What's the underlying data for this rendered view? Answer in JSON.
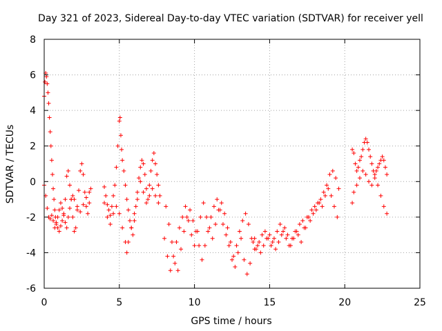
{
  "chart_data": {
    "type": "scatter",
    "title": "Day 321 of 2023, Sidereal Day-to-day VTEC variation (SDTVAR) for receiver yell",
    "xlabel": "GPS time / hours",
    "ylabel": "SDTVAR / TECUs",
    "xlim": [
      0,
      25
    ],
    "ylim": [
      -6,
      8
    ],
    "xticks": [
      0,
      5,
      10,
      15,
      20,
      25
    ],
    "xtick_labels": [
      "0",
      "5",
      "10",
      "15",
      "20",
      "25"
    ],
    "yticks": [
      -6,
      -4,
      -2,
      0,
      2,
      4,
      6,
      8
    ],
    "ytick_labels": [
      "-6",
      "-4",
      "-2",
      "0",
      "2",
      "4",
      "6",
      "8"
    ],
    "grid": true,
    "legend": "none",
    "marker": "+",
    "color": "#ff0000",
    "series": [
      {
        "name": "SDTVAR",
        "x": [
          0.0,
          0.05,
          0.1,
          0.15,
          0.2,
          0.25,
          0.3,
          0.35,
          0.4,
          0.45,
          0.5,
          0.55,
          0.6,
          0.65,
          0.7,
          0.75,
          0.8,
          0.9,
          1.0,
          1.1,
          1.2,
          1.3,
          1.4,
          1.5,
          1.6,
          1.7,
          1.8,
          1.9,
          2.0,
          2.1,
          2.2,
          2.3,
          2.4,
          2.5,
          2.6,
          2.7,
          2.8,
          2.9,
          3.0,
          3.1,
          0.0,
          0.1,
          0.2,
          0.3,
          0.4,
          0.5,
          0.6,
          0.7,
          0.8,
          0.9,
          1.0,
          1.1,
          1.2,
          1.3,
          1.4,
          1.5,
          1.6,
          1.7,
          1.8,
          1.9,
          2.0,
          2.2,
          2.4,
          2.6,
          2.8,
          3.0,
          4.0,
          4.1,
          4.2,
          4.3,
          4.4,
          4.5,
          4.6,
          4.7,
          4.8,
          4.9,
          5.0,
          5.05,
          5.1,
          5.15,
          5.2,
          5.3,
          5.4,
          5.5,
          5.6,
          5.7,
          5.8,
          5.9,
          6.0,
          6.1,
          6.2,
          6.3,
          6.4,
          6.5,
          6.6,
          6.7,
          6.8,
          6.9,
          7.0,
          7.1,
          7.2,
          7.3,
          7.4,
          7.5,
          7.6,
          7.7,
          4.0,
          4.2,
          4.4,
          4.6,
          4.8,
          5.0,
          5.2,
          5.4,
          5.5,
          5.6,
          5.8,
          6.0,
          6.2,
          6.4,
          6.6,
          6.8,
          7.0,
          7.2,
          7.4,
          7.6,
          8.0,
          8.2,
          8.4,
          8.6,
          8.8,
          9.0,
          9.2,
          9.4,
          9.6,
          9.8,
          10.0,
          10.2,
          10.4,
          10.6,
          10.8,
          11.0,
          11.2,
          11.4,
          11.6,
          11.8,
          12.0,
          12.2,
          12.4,
          12.6,
          12.8,
          13.0,
          13.2,
          13.4,
          13.6,
          13.8,
          14.0,
          8.1,
          8.3,
          8.5,
          8.7,
          8.9,
          9.1,
          9.3,
          9.5,
          9.7,
          9.9,
          10.1,
          10.3,
          10.5,
          10.7,
          10.9,
          11.1,
          11.3,
          11.5,
          11.7,
          11.9,
          12.1,
          12.3,
          12.5,
          12.7,
          12.9,
          13.1,
          13.3,
          13.5,
          13.7,
          13.9,
          14.0,
          14.2,
          14.4,
          14.6,
          14.8,
          15.0,
          15.2,
          15.4,
          15.6,
          15.8,
          16.0,
          16.2,
          16.4,
          16.6,
          16.8,
          17.0,
          17.2,
          17.4,
          17.6,
          17.8,
          18.0,
          18.2,
          18.4,
          18.6,
          18.8,
          19.0,
          19.2,
          19.4,
          19.6,
          14.1,
          14.3,
          14.5,
          14.7,
          14.9,
          15.1,
          15.3,
          15.5,
          15.7,
          15.9,
          16.1,
          16.3,
          16.5,
          16.7,
          16.9,
          17.1,
          17.3,
          17.5,
          17.7,
          17.9,
          18.1,
          18.3,
          18.5,
          18.7,
          18.9,
          19.1,
          19.3,
          19.5,
          20.5,
          20.6,
          20.7,
          20.8,
          20.9,
          21.0,
          21.1,
          21.2,
          21.3,
          21.4,
          21.5,
          21.6,
          21.7,
          21.8,
          21.9,
          22.0,
          22.1,
          22.2,
          22.3,
          22.4,
          22.5,
          22.6,
          22.7,
          22.8,
          20.5,
          20.6,
          20.8,
          21.0,
          21.2,
          21.4,
          21.6,
          21.8,
          22.0,
          22.2,
          22.4,
          22.6,
          22.8
        ],
        "y": [
          4.8,
          5.6,
          6.1,
          5.9,
          5.5,
          5.0,
          4.4,
          3.6,
          2.8,
          2.0,
          1.2,
          0.4,
          -0.4,
          -1.0,
          -1.6,
          -2.0,
          -2.3,
          -2.6,
          -2.8,
          -2.5,
          -2.2,
          -1.8,
          -1.0,
          0.3,
          0.6,
          -0.2,
          -1.0,
          -2.0,
          -2.8,
          -2.6,
          -1.6,
          -0.5,
          0.6,
          1.0,
          0.4,
          -0.6,
          -1.4,
          -1.8,
          -1.2,
          -0.4,
          -0.2,
          -0.8,
          -1.5,
          -2.0,
          -2.1,
          -1.9,
          -2.2,
          -2.6,
          -2.4,
          -2.0,
          -1.6,
          -1.2,
          -1.5,
          -1.9,
          -2.3,
          -2.6,
          -2.0,
          -1.5,
          -1.0,
          -0.8,
          -1.0,
          -1.4,
          -1.7,
          -1.3,
          -0.9,
          -0.6,
          -0.3,
          -0.8,
          -1.3,
          -1.6,
          -1.9,
          -1.4,
          -0.8,
          -0.2,
          0.8,
          2.0,
          3.4,
          3.6,
          2.6,
          1.8,
          1.2,
          0.6,
          -0.2,
          -1.0,
          -1.6,
          -2.2,
          -2.6,
          -3.0,
          -2.2,
          -1.4,
          -0.6,
          0.2,
          0.8,
          1.2,
          1.0,
          0.4,
          -0.4,
          -1.0,
          -0.2,
          0.6,
          1.2,
          1.6,
          1.0,
          0.4,
          -0.2,
          -0.8,
          -1.2,
          -2.0,
          -2.4,
          -1.8,
          -1.4,
          -1.8,
          -2.6,
          -3.4,
          -4.0,
          -3.4,
          -2.6,
          -1.8,
          -1.0,
          0.0,
          -0.6,
          -1.2,
          -0.8,
          -0.4,
          -0.8,
          -1.2,
          -3.2,
          -4.2,
          -5.0,
          -4.2,
          -3.4,
          -2.6,
          -2.0,
          -1.4,
          -2.2,
          -3.0,
          -3.6,
          -2.8,
          -2.0,
          -1.2,
          -2.0,
          -2.6,
          -3.2,
          -2.4,
          -1.6,
          -1.2,
          -1.8,
          -2.6,
          -3.4,
          -4.2,
          -3.6,
          -2.8,
          -2.2,
          -1.8,
          -2.4,
          -3.2,
          -3.8,
          -1.4,
          -2.4,
          -3.4,
          -4.6,
          -5.0,
          -3.8,
          -2.8,
          -2.0,
          -1.6,
          -2.2,
          -2.8,
          -3.6,
          -4.4,
          -3.6,
          -2.8,
          -2.0,
          -1.4,
          -1.0,
          -1.6,
          -2.4,
          -3.0,
          -3.6,
          -4.4,
          -4.8,
          -4.0,
          -3.2,
          -4.4,
          -5.2,
          -4.6,
          -3.4,
          -3.2,
          -3.6,
          -4.0,
          -3.6,
          -3.2,
          -3.0,
          -3.4,
          -3.8,
          -3.4,
          -3.0,
          -2.6,
          -3.0,
          -3.6,
          -3.2,
          -2.8,
          -2.4,
          -2.2,
          -2.6,
          -2.0,
          -1.6,
          -1.4,
          -1.2,
          -1.0,
          -0.6,
          -0.2,
          0.4,
          0.6,
          0.2,
          -0.4,
          -3.8,
          -3.4,
          -3.0,
          -2.8,
          -3.2,
          -3.6,
          -3.2,
          -2.8,
          -2.4,
          -2.8,
          -3.2,
          -3.6,
          -3.2,
          -2.8,
          -3.0,
          -3.4,
          -2.6,
          -2.0,
          -2.2,
          -1.8,
          -1.6,
          -1.2,
          -1.4,
          -0.8,
          -0.4,
          -0.8,
          -1.4,
          -2.0,
          1.8,
          1.6,
          1.0,
          0.6,
          0.8,
          1.2,
          1.4,
          1.8,
          2.2,
          2.4,
          2.2,
          1.8,
          1.4,
          1.0,
          0.6,
          0.4,
          0.6,
          0.8,
          1.0,
          1.2,
          1.4,
          1.2,
          0.8,
          0.4,
          -1.2,
          -0.6,
          -0.2,
          0.2,
          0.6,
          0.4,
          0.0,
          -0.2,
          0.2,
          -0.2,
          -0.8,
          -1.4,
          -1.8
        ]
      }
    ]
  }
}
